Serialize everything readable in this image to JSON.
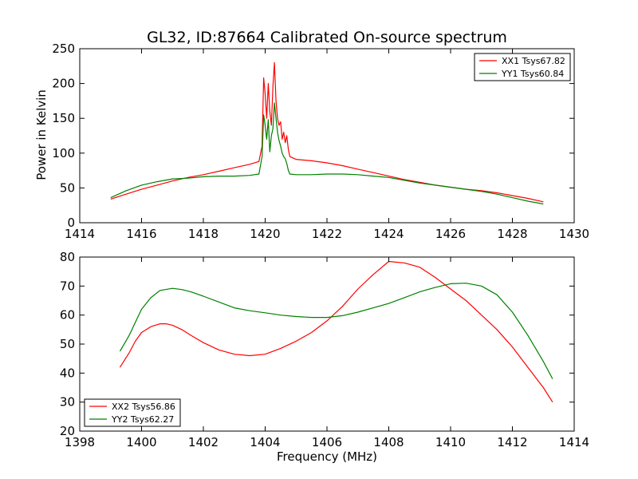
{
  "chart_data": [
    {
      "type": "line",
      "title": "GL32, ID:87664 Calibrated On-source spectrum",
      "xlabel": "",
      "ylabel": "Power in Kelvin",
      "xlim": [
        1414,
        1430
      ],
      "ylim": [
        0,
        250
      ],
      "xticks": [
        "1414",
        "1416",
        "1418",
        "1420",
        "1422",
        "1424",
        "1426",
        "1428",
        "1430"
      ],
      "yticks": [
        "0",
        "50",
        "100",
        "150",
        "200",
        "250"
      ],
      "legend_position": "top-right",
      "grid": false,
      "series": [
        {
          "name": "XX1 Tsys67.82",
          "color": "#ff0000",
          "x": [
            1415.0,
            1415.5,
            1416.0,
            1416.5,
            1417.0,
            1417.5,
            1418.0,
            1418.5,
            1419.0,
            1419.5,
            1419.8,
            1419.9,
            1419.95,
            1420.0,
            1420.05,
            1420.1,
            1420.15,
            1420.2,
            1420.25,
            1420.3,
            1420.35,
            1420.4,
            1420.45,
            1420.5,
            1420.55,
            1420.6,
            1420.65,
            1420.7,
            1420.75,
            1420.8,
            1421.0,
            1421.5,
            1422.0,
            1422.5,
            1423.0,
            1423.5,
            1424.0,
            1424.5,
            1425.0,
            1425.5,
            1426.0,
            1426.5,
            1427.0,
            1427.5,
            1428.0,
            1428.5,
            1429.0
          ],
          "values": [
            34,
            41,
            48,
            54,
            60,
            65,
            69,
            74,
            79,
            84,
            88,
            110,
            208,
            185,
            150,
            200,
            160,
            140,
            195,
            230,
            175,
            150,
            140,
            145,
            120,
            130,
            115,
            125,
            105,
            95,
            91,
            89,
            86,
            82,
            77,
            72,
            67,
            62,
            58,
            54,
            51,
            48,
            46,
            43,
            39,
            35,
            30
          ]
        },
        {
          "name": "YY1 Tsys60.84",
          "color": "#008000",
          "x": [
            1415.0,
            1415.5,
            1416.0,
            1416.5,
            1417.0,
            1417.5,
            1418.0,
            1418.5,
            1419.0,
            1419.5,
            1419.8,
            1419.9,
            1419.95,
            1420.0,
            1420.05,
            1420.1,
            1420.15,
            1420.2,
            1420.25,
            1420.3,
            1420.35,
            1420.4,
            1420.45,
            1420.5,
            1420.55,
            1420.6,
            1420.65,
            1420.7,
            1420.75,
            1420.8,
            1421.0,
            1421.5,
            1422.0,
            1422.5,
            1423.0,
            1423.5,
            1424.0,
            1424.5,
            1425.0,
            1425.5,
            1426.0,
            1426.5,
            1427.0,
            1427.5,
            1428.0,
            1428.5,
            1429.0
          ],
          "values": [
            36,
            46,
            54,
            59,
            63,
            64,
            66,
            67,
            67,
            68,
            70,
            95,
            155,
            140,
            120,
            148,
            102,
            125,
            135,
            172,
            150,
            130,
            118,
            110,
            100,
            95,
            92,
            85,
            75,
            70,
            69,
            69,
            70,
            70,
            69,
            67,
            65,
            61,
            57,
            54,
            51,
            48,
            45,
            41,
            36,
            31,
            27
          ]
        }
      ]
    },
    {
      "type": "line",
      "title": "",
      "xlabel": "Frequency (MHz)",
      "ylabel": "",
      "xlim": [
        1398,
        1414
      ],
      "ylim": [
        20,
        80
      ],
      "xticks": [
        "1398",
        "1400",
        "1402",
        "1404",
        "1406",
        "1408",
        "1410",
        "1412",
        "1414"
      ],
      "yticks": [
        "20",
        "30",
        "40",
        "50",
        "60",
        "70",
        "80"
      ],
      "legend_position": "lower-left",
      "grid": false,
      "series": [
        {
          "name": "XX2 Tsys56.86",
          "color": "#ff0000",
          "x": [
            1399.3,
            1399.6,
            1399.8,
            1400.0,
            1400.3,
            1400.6,
            1400.8,
            1401.0,
            1401.3,
            1401.6,
            1402.0,
            1402.5,
            1403.0,
            1403.5,
            1404.0,
            1404.5,
            1405.0,
            1405.5,
            1406.0,
            1406.5,
            1407.0,
            1407.5,
            1408.0,
            1408.5,
            1409.0,
            1409.5,
            1410.0,
            1410.5,
            1411.0,
            1411.5,
            1412.0,
            1412.5,
            1413.0,
            1413.3
          ],
          "values": [
            42,
            47,
            51,
            54,
            56,
            57,
            57,
            56.5,
            55,
            53,
            50.5,
            48,
            46.5,
            46,
            46.5,
            48.5,
            51,
            54,
            58,
            63,
            69,
            74,
            78.5,
            78,
            76.5,
            73,
            69,
            65,
            60,
            55,
            49,
            42,
            35,
            30
          ]
        },
        {
          "name": "YY2 Tsys62.27",
          "color": "#008000",
          "x": [
            1399.3,
            1399.6,
            1399.8,
            1400.0,
            1400.3,
            1400.6,
            1401.0,
            1401.3,
            1401.6,
            1402.0,
            1402.5,
            1403.0,
            1403.5,
            1404.0,
            1404.5,
            1405.0,
            1405.5,
            1406.0,
            1406.5,
            1407.0,
            1407.5,
            1408.0,
            1408.5,
            1409.0,
            1409.5,
            1410.0,
            1410.5,
            1411.0,
            1411.5,
            1412.0,
            1412.5,
            1413.0,
            1413.3
          ],
          "values": [
            47.5,
            53,
            57.5,
            62,
            66,
            68.5,
            69.2,
            68.8,
            68,
            66.5,
            64.5,
            62.5,
            61.5,
            60.8,
            60,
            59.5,
            59.2,
            59.2,
            59.8,
            61,
            62.5,
            64,
            66,
            68,
            69.5,
            70.8,
            71,
            70,
            67,
            61,
            53,
            44,
            38
          ]
        }
      ]
    }
  ]
}
